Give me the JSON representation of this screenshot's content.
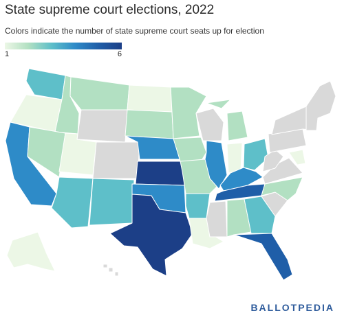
{
  "title": "State supreme court elections, 2022",
  "subtitle": "Colors indicate the number of state supreme court seats up for election",
  "legend": {
    "min_label": "1",
    "max_label": "6",
    "scale": [
      "#ecf7e6",
      "#b2e0c2",
      "#5ebfc9",
      "#2e8bc8",
      "#1f5ea8",
      "#1c3f87"
    ],
    "no_election_color": "#d9d9d9"
  },
  "logo": {
    "part1": "BALLOT",
    "part2": "PEDIA"
  },
  "map_data": {
    "metric": "State supreme court seats up for election",
    "states": [
      {
        "state": "WA",
        "seats": 3
      },
      {
        "state": "OR",
        "seats": 1
      },
      {
        "state": "CA",
        "seats": 4
      },
      {
        "state": "ID",
        "seats": 2
      },
      {
        "state": "NV",
        "seats": 2
      },
      {
        "state": "MT",
        "seats": 2
      },
      {
        "state": "WY",
        "seats": null
      },
      {
        "state": "UT",
        "seats": 1
      },
      {
        "state": "AZ",
        "seats": 3
      },
      {
        "state": "CO",
        "seats": null
      },
      {
        "state": "NM",
        "seats": 3
      },
      {
        "state": "ND",
        "seats": 1
      },
      {
        "state": "SD",
        "seats": 2
      },
      {
        "state": "NE",
        "seats": 4
      },
      {
        "state": "KS",
        "seats": 6
      },
      {
        "state": "OK",
        "seats": 4
      },
      {
        "state": "TX",
        "seats": 6
      },
      {
        "state": "MN",
        "seats": 2
      },
      {
        "state": "IA",
        "seats": 2
      },
      {
        "state": "MO",
        "seats": 2
      },
      {
        "state": "AR",
        "seats": 3
      },
      {
        "state": "LA",
        "seats": 1
      },
      {
        "state": "WI",
        "seats": null
      },
      {
        "state": "IL",
        "seats": 4
      },
      {
        "state": "MI",
        "seats": 2
      },
      {
        "state": "IN",
        "seats": 1
      },
      {
        "state": "KY",
        "seats": 4
      },
      {
        "state": "TN",
        "seats": 5
      },
      {
        "state": "MS",
        "seats": null
      },
      {
        "state": "AL",
        "seats": 2
      },
      {
        "state": "GA",
        "seats": 3
      },
      {
        "state": "FL",
        "seats": 5
      },
      {
        "state": "OH",
        "seats": 3
      },
      {
        "state": "NC",
        "seats": 2
      },
      {
        "state": "SC",
        "seats": null
      },
      {
        "state": "VA",
        "seats": null
      },
      {
        "state": "WV",
        "seats": null
      },
      {
        "state": "PA",
        "seats": null
      },
      {
        "state": "NY",
        "seats": null
      },
      {
        "state": "MD",
        "seats": 1
      },
      {
        "state": "AK",
        "seats": 1
      },
      {
        "state": "HI",
        "seats": null
      },
      {
        "state": "New England",
        "seats": null
      }
    ]
  }
}
